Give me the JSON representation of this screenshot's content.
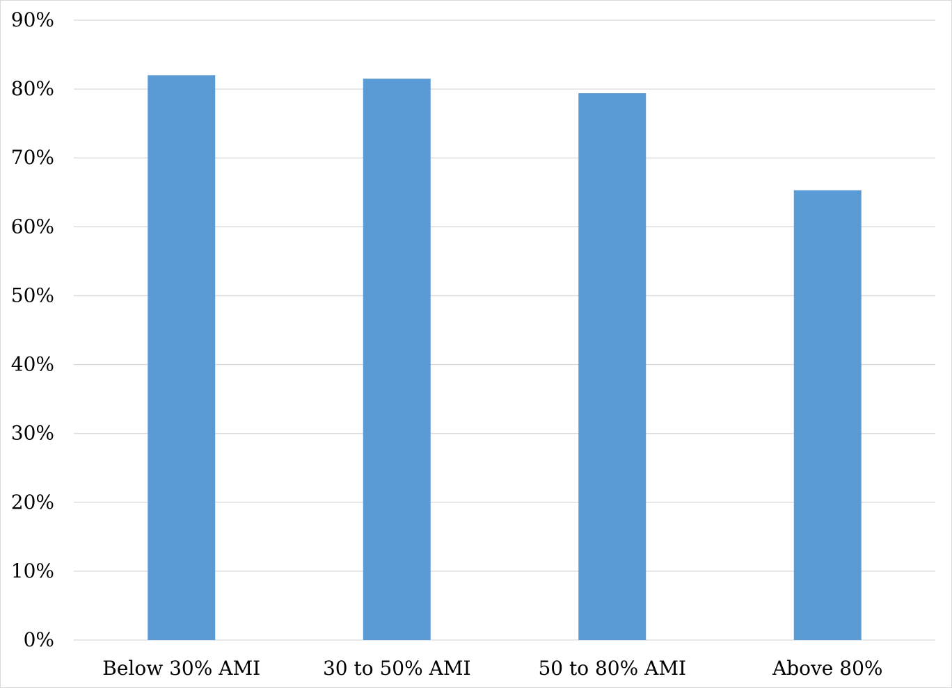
{
  "chart_data": {
    "type": "bar",
    "title": "",
    "xlabel": "",
    "ylabel": "",
    "categories": [
      "Below 30% AMI",
      "30 to 50% AMI",
      "50 to 80% AMI",
      "Above 80%"
    ],
    "values": [
      0.82,
      0.815,
      0.794,
      0.653
    ],
    "ylim": [
      0,
      0.9
    ],
    "yticks": [
      0,
      0.1,
      0.2,
      0.3,
      0.4,
      0.5,
      0.6,
      0.7,
      0.8,
      0.9
    ],
    "ytick_labels": [
      "0%",
      "10%",
      "20%",
      "30%",
      "40%",
      "50%",
      "60%",
      "70%",
      "80%",
      "90%"
    ],
    "grid": true,
    "legend": "none",
    "bar_color": "#5b9bd5",
    "grid_color": "#d9d9d9"
  }
}
